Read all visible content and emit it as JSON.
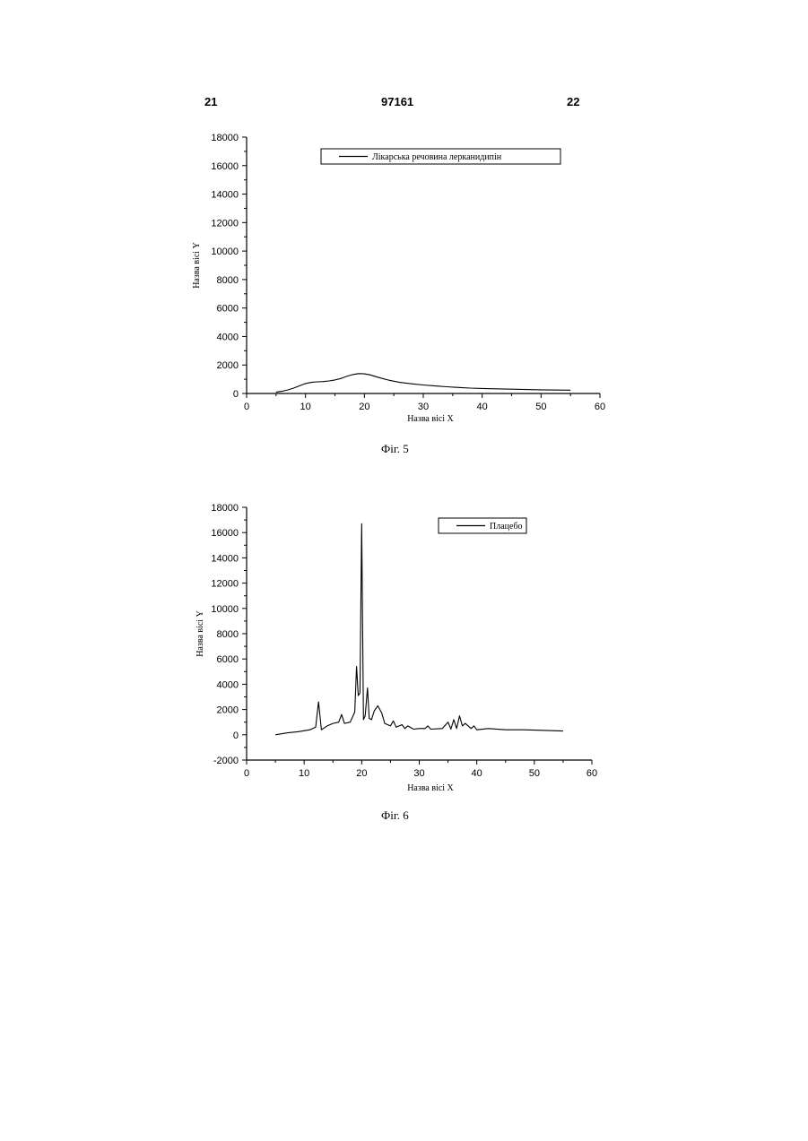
{
  "header": {
    "left": "21",
    "center": "97161",
    "right": "22"
  },
  "captions": [
    "Фіг. 5",
    "Фіг. 6"
  ],
  "chart_data": [
    {
      "type": "line",
      "title": "",
      "xlabel": "Назва вісі X",
      "ylabel": "Назва вісі Y",
      "xlim": [
        0,
        60
      ],
      "ylim": [
        0,
        18000
      ],
      "xticks": [
        0,
        10,
        20,
        30,
        40,
        50,
        60
      ],
      "yticks": [
        0,
        2000,
        4000,
        6000,
        8000,
        10000,
        12000,
        14000,
        16000,
        18000
      ],
      "legend_position": "top",
      "series": [
        {
          "name": "Лікарська речовина лерканидипін",
          "x": [
            5,
            6,
            7,
            8,
            9,
            10,
            11,
            12,
            13,
            14,
            15,
            16,
            17,
            18,
            19,
            20,
            21,
            22,
            23,
            24,
            25,
            26,
            28,
            30,
            32,
            34,
            36,
            38,
            40,
            45,
            50,
            55
          ],
          "y": [
            100,
            150,
            250,
            380,
            540,
            700,
            780,
            820,
            840,
            880,
            950,
            1050,
            1200,
            1330,
            1400,
            1380,
            1300,
            1180,
            1060,
            950,
            860,
            780,
            680,
            600,
            530,
            470,
            420,
            380,
            350,
            300,
            260,
            230
          ]
        }
      ]
    },
    {
      "type": "line",
      "title": "",
      "xlabel": "Назва вісі X",
      "ylabel": "Назва вісі Y",
      "xlim": [
        0,
        60
      ],
      "ylim": [
        -2000,
        18000
      ],
      "xticks": [
        0,
        10,
        20,
        30,
        40,
        50,
        60
      ],
      "yticks": [
        -2000,
        0,
        2000,
        4000,
        6000,
        8000,
        10000,
        12000,
        14000,
        16000,
        18000
      ],
      "legend_position": "top-right",
      "series": [
        {
          "name": "Плацебо",
          "x": [
            5,
            7,
            9,
            11,
            12,
            12.5,
            13,
            14,
            15,
            16,
            16.5,
            17,
            18,
            18.8,
            19.1,
            19.4,
            19.7,
            20.0,
            20.3,
            20.6,
            21.0,
            21.3,
            21.7,
            22.2,
            22.8,
            23.5,
            24,
            25,
            25.5,
            26,
            27,
            27.5,
            28,
            29,
            30,
            31,
            31.5,
            32,
            34,
            35,
            35.5,
            36,
            36.5,
            37,
            37.5,
            38,
            39,
            39.5,
            40,
            42,
            45,
            48,
            52,
            55
          ],
          "y": [
            0,
            150,
            250,
            400,
            600,
            2600,
            400,
            700,
            900,
            1000,
            1600,
            900,
            1000,
            1800,
            5400,
            3100,
            3300,
            16700,
            1200,
            1500,
            3700,
            1300,
            1200,
            1900,
            2300,
            1700,
            900,
            700,
            1100,
            600,
            800,
            500,
            700,
            450,
            500,
            500,
            700,
            450,
            500,
            1000,
            450,
            1200,
            500,
            1500,
            700,
            900,
            500,
            700,
            400,
            500,
            400,
            400,
            350,
            300
          ]
        }
      ]
    }
  ]
}
